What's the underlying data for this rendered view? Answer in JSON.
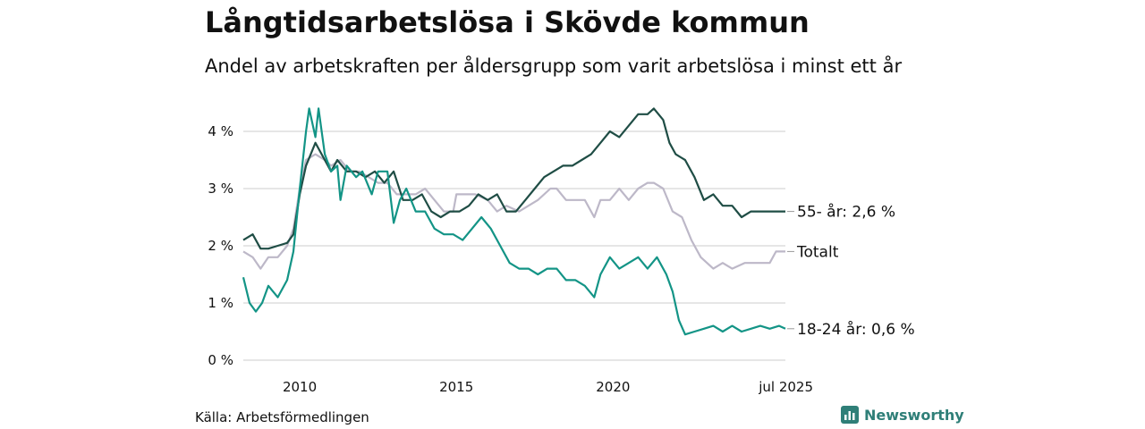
{
  "header": {
    "title": "Långtidsarbetslösa i Skövde kommun",
    "subtitle": "Andel av arbetskraften per åldersgrupp som varit arbetslösa i minst ett år"
  },
  "footer": {
    "source": "Källa: Arbetsförmedlingen",
    "brand": "Newsworthy"
  },
  "colors": {
    "series_55": "#1f4d45",
    "series_total": "#bdb8c8",
    "series_18_24": "#139486",
    "grid": "#dddddd",
    "brand": "#2f7f78"
  },
  "chart_data": {
    "type": "line",
    "x_unit": "year",
    "xlim": [
      2008.2,
      2025.5
    ],
    "ylim": [
      0,
      4.5
    ],
    "y_ticks": [
      0,
      1,
      2,
      3,
      4
    ],
    "y_tick_labels": [
      "0 %",
      "1 %",
      "2 %",
      "3 %",
      "4 %"
    ],
    "x_ticks": [
      2010,
      2015,
      2020,
      2025.5
    ],
    "x_tick_labels": [
      "2010",
      "2015",
      "2020",
      "jul 2025"
    ],
    "grid": true,
    "series": [
      {
        "name": "Totalt",
        "end_label": "Totalt",
        "points": [
          [
            2008.2,
            1.9
          ],
          [
            2008.5,
            1.8
          ],
          [
            2008.75,
            1.6
          ],
          [
            2009.0,
            1.8
          ],
          [
            2009.3,
            1.8
          ],
          [
            2009.6,
            2.0
          ],
          [
            2009.8,
            2.3
          ],
          [
            2010.0,
            3.0
          ],
          [
            2010.2,
            3.5
          ],
          [
            2010.5,
            3.6
          ],
          [
            2010.8,
            3.5
          ],
          [
            2011.0,
            3.4
          ],
          [
            2011.3,
            3.5
          ],
          [
            2011.6,
            3.3
          ],
          [
            2011.9,
            3.3
          ],
          [
            2012.2,
            3.2
          ],
          [
            2012.5,
            3.1
          ],
          [
            2012.8,
            3.1
          ],
          [
            2013.1,
            2.9
          ],
          [
            2013.4,
            2.9
          ],
          [
            2013.7,
            2.9
          ],
          [
            2014.0,
            3.0
          ],
          [
            2014.3,
            2.8
          ],
          [
            2014.6,
            2.6
          ],
          [
            2014.9,
            2.6
          ],
          [
            2015.0,
            2.9
          ],
          [
            2015.3,
            2.9
          ],
          [
            2015.6,
            2.9
          ],
          [
            2016.0,
            2.8
          ],
          [
            2016.3,
            2.6
          ],
          [
            2016.6,
            2.7
          ],
          [
            2017.0,
            2.6
          ],
          [
            2017.3,
            2.7
          ],
          [
            2017.6,
            2.8
          ],
          [
            2018.0,
            3.0
          ],
          [
            2018.2,
            3.0
          ],
          [
            2018.5,
            2.8
          ],
          [
            2018.8,
            2.8
          ],
          [
            2019.1,
            2.8
          ],
          [
            2019.4,
            2.5
          ],
          [
            2019.6,
            2.8
          ],
          [
            2019.9,
            2.8
          ],
          [
            2020.2,
            3.0
          ],
          [
            2020.5,
            2.8
          ],
          [
            2020.8,
            3.0
          ],
          [
            2021.1,
            3.1
          ],
          [
            2021.3,
            3.1
          ],
          [
            2021.6,
            3.0
          ],
          [
            2021.9,
            2.6
          ],
          [
            2022.2,
            2.5
          ],
          [
            2022.5,
            2.1
          ],
          [
            2022.8,
            1.8
          ],
          [
            2023.2,
            1.6
          ],
          [
            2023.5,
            1.7
          ],
          [
            2023.8,
            1.6
          ],
          [
            2024.2,
            1.7
          ],
          [
            2024.6,
            1.7
          ],
          [
            2025.0,
            1.7
          ],
          [
            2025.2,
            1.9
          ],
          [
            2025.5,
            1.9
          ]
        ]
      },
      {
        "name": "55- år",
        "end_label": "55- år: 2,6 %",
        "points": [
          [
            2008.2,
            2.1
          ],
          [
            2008.5,
            2.2
          ],
          [
            2008.75,
            1.95
          ],
          [
            2009.0,
            1.95
          ],
          [
            2009.3,
            2.0
          ],
          [
            2009.6,
            2.05
          ],
          [
            2009.8,
            2.2
          ],
          [
            2010.0,
            2.9
          ],
          [
            2010.2,
            3.4
          ],
          [
            2010.5,
            3.8
          ],
          [
            2010.7,
            3.6
          ],
          [
            2011.0,
            3.3
          ],
          [
            2011.2,
            3.5
          ],
          [
            2011.5,
            3.3
          ],
          [
            2011.8,
            3.3
          ],
          [
            2012.1,
            3.2
          ],
          [
            2012.4,
            3.3
          ],
          [
            2012.7,
            3.1
          ],
          [
            2013.0,
            3.3
          ],
          [
            2013.3,
            2.8
          ],
          [
            2013.6,
            2.8
          ],
          [
            2013.9,
            2.9
          ],
          [
            2014.2,
            2.6
          ],
          [
            2014.5,
            2.5
          ],
          [
            2014.8,
            2.6
          ],
          [
            2015.1,
            2.6
          ],
          [
            2015.4,
            2.7
          ],
          [
            2015.7,
            2.9
          ],
          [
            2016.0,
            2.8
          ],
          [
            2016.3,
            2.9
          ],
          [
            2016.6,
            2.6
          ],
          [
            2016.9,
            2.6
          ],
          [
            2017.2,
            2.8
          ],
          [
            2017.5,
            3.0
          ],
          [
            2017.8,
            3.2
          ],
          [
            2018.1,
            3.3
          ],
          [
            2018.4,
            3.4
          ],
          [
            2018.7,
            3.4
          ],
          [
            2019.0,
            3.5
          ],
          [
            2019.3,
            3.6
          ],
          [
            2019.6,
            3.8
          ],
          [
            2019.9,
            4.0
          ],
          [
            2020.2,
            3.9
          ],
          [
            2020.5,
            4.1
          ],
          [
            2020.8,
            4.3
          ],
          [
            2021.1,
            4.3
          ],
          [
            2021.3,
            4.4
          ],
          [
            2021.6,
            4.2
          ],
          [
            2021.8,
            3.8
          ],
          [
            2022.0,
            3.6
          ],
          [
            2022.3,
            3.5
          ],
          [
            2022.6,
            3.2
          ],
          [
            2022.9,
            2.8
          ],
          [
            2023.2,
            2.9
          ],
          [
            2023.5,
            2.7
          ],
          [
            2023.8,
            2.7
          ],
          [
            2024.1,
            2.5
          ],
          [
            2024.4,
            2.6
          ],
          [
            2024.7,
            2.6
          ],
          [
            2025.0,
            2.6
          ],
          [
            2025.2,
            2.6
          ],
          [
            2025.5,
            2.6
          ]
        ]
      },
      {
        "name": "18-24 år",
        "end_label": "18-24 år: 0,6 %",
        "points": [
          [
            2008.2,
            1.45
          ],
          [
            2008.4,
            1.0
          ],
          [
            2008.6,
            0.85
          ],
          [
            2008.8,
            1.0
          ],
          [
            2009.0,
            1.3
          ],
          [
            2009.3,
            1.1
          ],
          [
            2009.6,
            1.4
          ],
          [
            2009.8,
            1.9
          ],
          [
            2010.0,
            3.0
          ],
          [
            2010.2,
            4.0
          ],
          [
            2010.3,
            4.4
          ],
          [
            2010.5,
            3.9
          ],
          [
            2010.6,
            4.4
          ],
          [
            2010.8,
            3.6
          ],
          [
            2011.0,
            3.3
          ],
          [
            2011.2,
            3.4
          ],
          [
            2011.3,
            2.8
          ],
          [
            2011.5,
            3.4
          ],
          [
            2011.8,
            3.2
          ],
          [
            2012.0,
            3.3
          ],
          [
            2012.3,
            2.9
          ],
          [
            2012.5,
            3.3
          ],
          [
            2012.8,
            3.3
          ],
          [
            2013.0,
            2.4
          ],
          [
            2013.2,
            2.8
          ],
          [
            2013.4,
            3.0
          ],
          [
            2013.7,
            2.6
          ],
          [
            2014.0,
            2.6
          ],
          [
            2014.3,
            2.3
          ],
          [
            2014.6,
            2.2
          ],
          [
            2014.9,
            2.2
          ],
          [
            2015.2,
            2.1
          ],
          [
            2015.5,
            2.3
          ],
          [
            2015.8,
            2.5
          ],
          [
            2016.1,
            2.3
          ],
          [
            2016.4,
            2.0
          ],
          [
            2016.7,
            1.7
          ],
          [
            2017.0,
            1.6
          ],
          [
            2017.3,
            1.6
          ],
          [
            2017.6,
            1.5
          ],
          [
            2017.9,
            1.6
          ],
          [
            2018.2,
            1.6
          ],
          [
            2018.5,
            1.4
          ],
          [
            2018.8,
            1.4
          ],
          [
            2019.1,
            1.3
          ],
          [
            2019.4,
            1.1
          ],
          [
            2019.6,
            1.5
          ],
          [
            2019.9,
            1.8
          ],
          [
            2020.2,
            1.6
          ],
          [
            2020.5,
            1.7
          ],
          [
            2020.8,
            1.8
          ],
          [
            2021.1,
            1.6
          ],
          [
            2021.4,
            1.8
          ],
          [
            2021.7,
            1.5
          ],
          [
            2021.9,
            1.2
          ],
          [
            2022.1,
            0.7
          ],
          [
            2022.3,
            0.45
          ],
          [
            2022.6,
            0.5
          ],
          [
            2022.9,
            0.55
          ],
          [
            2023.2,
            0.6
          ],
          [
            2023.5,
            0.5
          ],
          [
            2023.8,
            0.6
          ],
          [
            2024.1,
            0.5
          ],
          [
            2024.4,
            0.55
          ],
          [
            2024.7,
            0.6
          ],
          [
            2025.0,
            0.55
          ],
          [
            2025.3,
            0.6
          ],
          [
            2025.5,
            0.55
          ]
        ]
      }
    ]
  }
}
